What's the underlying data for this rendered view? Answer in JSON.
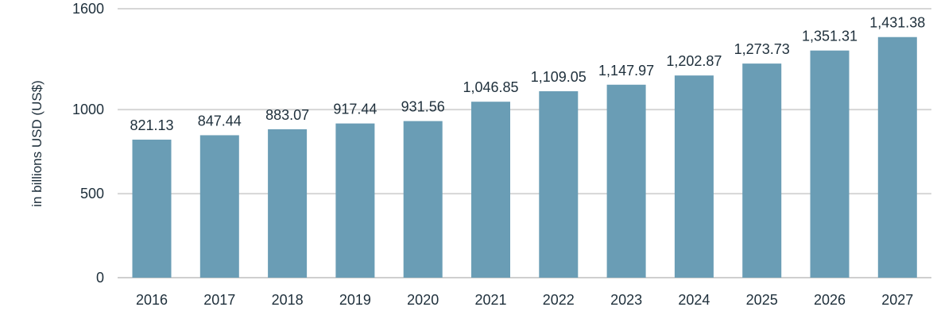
{
  "chart_data": {
    "type": "bar",
    "title": "",
    "xlabel": "",
    "ylabel": "in billions USD (US$)",
    "categories": [
      "2016",
      "2017",
      "2018",
      "2019",
      "2020",
      "2021",
      "2022",
      "2023",
      "2024",
      "2025",
      "2026",
      "2027"
    ],
    "values": [
      821.13,
      847.44,
      883.07,
      917.44,
      931.56,
      1046.85,
      1109.05,
      1147.97,
      1202.87,
      1273.73,
      1351.31,
      1431.38
    ],
    "data_labels": [
      "821.13",
      "847.44",
      "883.07",
      "917.44",
      "931.56",
      "1,046.85",
      "1,109.05",
      "1,147.97",
      "1,202.87",
      "1,273.73",
      "1,351.31",
      "1,431.38"
    ],
    "ylim": [
      0,
      1600
    ],
    "yticks": [
      0,
      500,
      1000,
      1600
    ],
    "ytick_labels": [
      "0",
      "500",
      "1000",
      "1600"
    ],
    "grid": true,
    "legend": "none",
    "bar_color": "#6a9db5"
  }
}
